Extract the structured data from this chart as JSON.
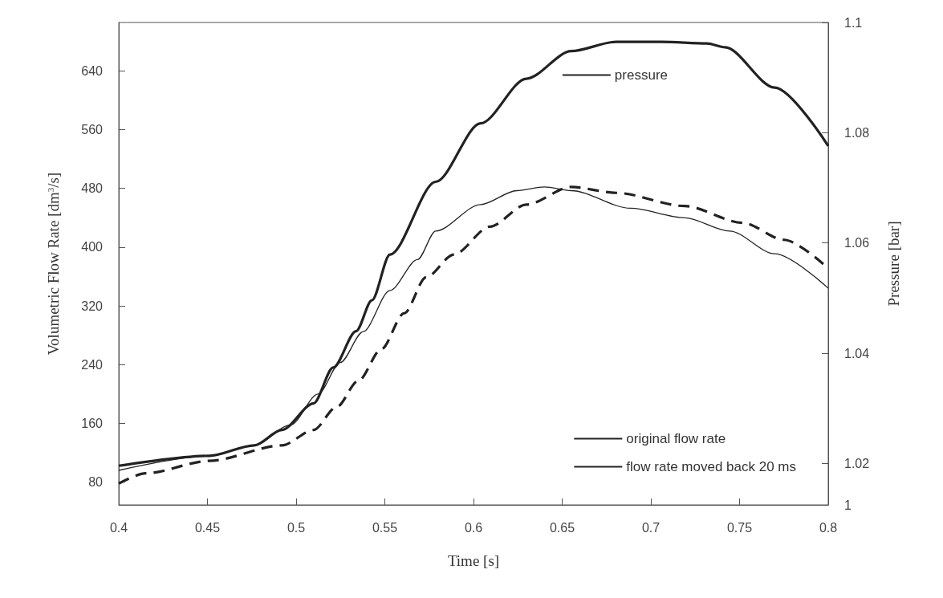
{
  "chart_data": {
    "type": "line",
    "xlabel": "Time [s]",
    "ylabel": "Volumetric Flow Rate [dm$^{3}$/s]",
    "y2label": "Pressure [bar]",
    "xlim": [
      0.4,
      0.8
    ],
    "xticks": [
      0.4,
      0.45,
      0.5,
      {
        "value": 0.55,
        "label": "0.55"
      },
      0.6,
      0.65,
      0.7,
      0.75,
      0.8
    ],
    "ylim": [
      49,
      706
    ],
    "yticks": [
      80,
      160,
      240,
      320,
      400,
      480,
      560,
      640
    ],
    "y2lim": [
      1.0125,
      1.1
    ],
    "y2ticks": [
      {
        "value": 1.0125,
        "label": "1"
      },
      1.02,
      1.04,
      1.06,
      1.08,
      1.1
    ],
    "grid": false,
    "legend": "right",
    "marker": "none",
    "series": [
      {
        "name": "pressure",
        "color": "#222222",
        "axis": "y2",
        "line_style": "solid",
        "x": [
          0.4,
          0.4511,
          0.4764,
          0.492,
          0.5098,
          0.5209,
          0.5338,
          0.5427,
          0.5529,
          0.5787,
          0.604,
          0.6298,
          0.6551,
          0.6804,
          0.7062,
          0.7316,
          0.7418,
          0.7698,
          0.8
        ],
        "values": [
          1.0196,
          1.0214,
          1.0233,
          1.0261,
          1.0309,
          1.0374,
          1.044,
          1.0496,
          1.0579,
          1.0711,
          1.0817,
          1.0898,
          1.0948,
          1.0965,
          1.0965,
          1.0962,
          1.0955,
          1.0882,
          1.0776
        ]
      },
      {
        "name": "original flow rate",
        "color": "#222222",
        "line_style": "dashed",
        "x": [
          0.4,
          0.4151,
          0.4511,
          0.492,
          0.5098,
          0.5227,
          0.5351,
          0.548,
          0.5609,
          0.5733,
          0.5889,
          0.6093,
          0.6298,
          0.6551,
          0.6804,
          0.7191,
          0.752,
          0.7751,
          0.8
        ],
        "values": [
          78,
          92,
          109,
          130,
          151,
          182,
          218,
          261,
          310,
          359,
          390,
          428,
          458,
          482,
          474,
          456,
          433,
          410,
          371
        ]
      },
      {
        "name": "flow rate moved back 20 ms",
        "color": "#222222",
        "line_style": "solid",
        "x": [
          0.4,
          0.4511,
          0.4764,
          0.4969,
          0.5124,
          0.5249,
          0.5378,
          0.5529,
          0.5684,
          0.5787,
          0.604,
          0.6244,
          0.64,
          0.6551,
          0.6884,
          0.7191,
          0.7444,
          0.7698,
          0.8
        ],
        "values": [
          96,
          116,
          130,
          158,
          200,
          243,
          285,
          341,
          383,
          422,
          458,
          477,
          482,
          477,
          453,
          440,
          422,
          391,
          344
        ]
      }
    ]
  }
}
